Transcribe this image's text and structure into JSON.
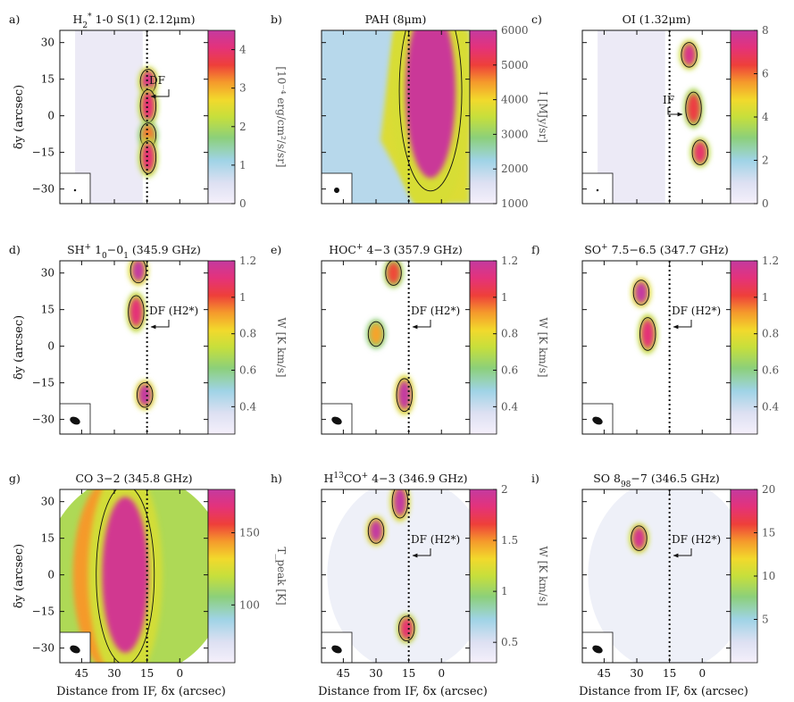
{
  "common": {
    "xlabel": "Distance from IF, δx (arcsec)",
    "ylabel": "δy (arcsec)",
    "x_ticks": [
      "45",
      "30",
      "15",
      "0"
    ],
    "y_ticks": [
      "30",
      "15",
      "0",
      "−15",
      "−30"
    ]
  },
  "chart_data": [
    {
      "type": "heatmap",
      "panel": "a)",
      "title": "H2* 1-0 S(1) (2.12μm)",
      "title_parts": {
        "pre": "H",
        "sub": "2",
        "sup": "*",
        "post": " 1-0 S(1) (2.12μm)"
      },
      "xlim": [
        55,
        -13
      ],
      "ylim": [
        -36,
        35
      ],
      "df_line_x": 15,
      "colorbar": {
        "label": "[10⁻⁴ erg/cm²/s/sr]",
        "range": [
          0,
          4.5
        ],
        "ticks": [
          "0",
          "1",
          "2",
          "3",
          "4"
        ]
      },
      "annotation": "DF",
      "beam": "small",
      "features": [
        {
          "x": 14.5,
          "y": 14,
          "peak": 4.2
        },
        {
          "x": 14.5,
          "y": 4,
          "peak": 4.0
        },
        {
          "x": 14.5,
          "y": -8,
          "peak": 3.3
        },
        {
          "x": 14.5,
          "y": -17,
          "peak": 4.0
        }
      ]
    },
    {
      "type": "heatmap",
      "panel": "b)",
      "title": "PAH (8μm)",
      "xlim": [
        55,
        -13
      ],
      "ylim": [
        -36,
        35
      ],
      "df_line_x": 15,
      "colorbar": {
        "label": "I [MJy/sr]",
        "range": [
          1000,
          6000
        ],
        "ticks": [
          "1000",
          "2000",
          "3000",
          "4000",
          "5000",
          "6000"
        ]
      },
      "annotation": "",
      "beam": "medium",
      "features": [
        {
          "x": 5,
          "y": 10,
          "peak": 5900
        }
      ]
    },
    {
      "type": "heatmap",
      "panel": "c)",
      "title": "OI 1.32μm)",
      "title_text": "OI (1.32μm)",
      "xlim": [
        55,
        -13
      ],
      "ylim": [
        -36,
        35
      ],
      "df_line_x": 15,
      "colorbar": {
        "label": "[10⁻⁴ erg/cm²/s/sr]",
        "range": [
          0,
          8
        ],
        "ticks": [
          "0",
          "2",
          "4",
          "6",
          "8"
        ]
      },
      "annotation": "IF",
      "beam": "small",
      "features": [
        {
          "x": 6,
          "y": 25,
          "peak": 7.5
        },
        {
          "x": 4,
          "y": 3,
          "peak": 6.5
        },
        {
          "x": 1,
          "y": -15,
          "peak": 7.0
        }
      ]
    },
    {
      "type": "heatmap",
      "panel": "d)",
      "title": "SH+ 1_0-0_1 (345.9 GHz)",
      "title_parts": {
        "pre": "SH",
        "sup": "+",
        "post": " 1",
        "sub2": "0",
        "mid": "−0",
        "sub3": "1",
        "tail": " (345.9 GHz)"
      },
      "xlim": [
        55,
        -13
      ],
      "ylim": [
        -36,
        35
      ],
      "df_line_x": 15,
      "colorbar": {
        "label": "W [K km/s]",
        "range": [
          0.25,
          1.2
        ],
        "ticks": [
          "0.4",
          "0.6",
          "0.8",
          "1",
          "1.2"
        ]
      },
      "annotation": "DF (H2*)",
      "beam": "large",
      "features": [
        {
          "x": 19,
          "y": 31,
          "peak": 1.2
        },
        {
          "x": 20,
          "y": 14,
          "peak": 1.1
        },
        {
          "x": 16,
          "y": -20,
          "peak": 1.2
        }
      ]
    },
    {
      "type": "heatmap",
      "panel": "e)",
      "title": "HOC+ 4-3 (357.9 GHz)",
      "title_parts": {
        "pre": "HOC",
        "sup": "+",
        "post": " 4−3 (357.9 GHz)"
      },
      "xlim": [
        55,
        -13
      ],
      "ylim": [
        -36,
        35
      ],
      "df_line_x": 15,
      "colorbar": {
        "label": "W [K km/s]",
        "range": [
          0.25,
          1.2
        ],
        "ticks": [
          "0.4",
          "0.6",
          "0.8",
          "1",
          "1.2"
        ]
      },
      "annotation": "DF (H2*)",
      "beam": "large",
      "features": [
        {
          "x": 22,
          "y": 30,
          "peak": 1.0
        },
        {
          "x": 17,
          "y": -20,
          "peak": 1.2
        },
        {
          "x": 30,
          "y": 5,
          "peak": 0.9
        }
      ]
    },
    {
      "type": "heatmap",
      "panel": "f)",
      "title": "SO+ 7.5-6.5 (347.7 GHz)",
      "title_parts": {
        "pre": "SO",
        "sup": "+",
        "post": " 7.5−6.5 (347.7 GHz)"
      },
      "xlim": [
        55,
        -13
      ],
      "ylim": [
        -36,
        35
      ],
      "df_line_x": 15,
      "colorbar": {
        "label": "W [K km/s]",
        "range": [
          0.25,
          1.2
        ],
        "ticks": [
          "0.4",
          "0.6",
          "0.8",
          "1",
          "1.2"
        ]
      },
      "annotation": "DF (H2*)",
      "beam": "large",
      "features": [
        {
          "x": 28,
          "y": 22,
          "peak": 1.2
        },
        {
          "x": 25,
          "y": 5,
          "peak": 1.1
        }
      ]
    },
    {
      "type": "heatmap",
      "panel": "g)",
      "title": "CO 3-2 (345.8 GHz)",
      "title_text": "CO 3−2 (345.8 GHz)",
      "xlim": [
        55,
        -13
      ],
      "ylim": [
        -36,
        35
      ],
      "df_line_x": 15,
      "colorbar": {
        "label": "T_peak [K]",
        "range": [
          60,
          180
        ],
        "ticks": [
          "100",
          "150"
        ]
      },
      "annotation": "",
      "beam": "large",
      "features": [
        {
          "x": 25,
          "y": 0,
          "peak": 175
        }
      ]
    },
    {
      "type": "heatmap",
      "panel": "h)",
      "title": "H13CO+ 4-3 (346.9 GHz)",
      "title_parts": {
        "pre": "H",
        "sup": "13",
        "post": "CO",
        "sup2": "+",
        "tail": " 4−3 (346.9 GHz)"
      },
      "xlim": [
        55,
        -13
      ],
      "ylim": [
        -36,
        35
      ],
      "df_line_x": 15,
      "colorbar": {
        "label": "W [K km/s]",
        "range": [
          0.3,
          2
        ],
        "ticks": [
          "0.5",
          "1",
          "1.5",
          "2"
        ]
      },
      "annotation": "DF (H2*)",
      "beam": "large",
      "features": [
        {
          "x": 30,
          "y": 18,
          "peak": 2.0
        },
        {
          "x": 19,
          "y": 30,
          "peak": 2.0
        },
        {
          "x": 16,
          "y": -22,
          "peak": 1.8
        }
      ]
    },
    {
      "type": "heatmap",
      "panel": "i)",
      "title": "SO 8_9-7_8 (346.5 GHz)",
      "title_parts": {
        "pre": "SO 8",
        "sub": "9",
        "mid": "−7",
        "sub2": "8",
        "tail": " (346.5 GHz)"
      },
      "xlim": [
        55,
        -13
      ],
      "ylim": [
        -36,
        35
      ],
      "df_line_x": 15,
      "colorbar": {
        "label": "W [K km/s]",
        "range": [
          0,
          20
        ],
        "ticks": [
          "5",
          "10",
          "15",
          "20"
        ]
      },
      "annotation": "DF (H2*)",
      "beam": "large",
      "features": [
        {
          "x": 29,
          "y": 15,
          "peak": 19
        }
      ]
    }
  ]
}
